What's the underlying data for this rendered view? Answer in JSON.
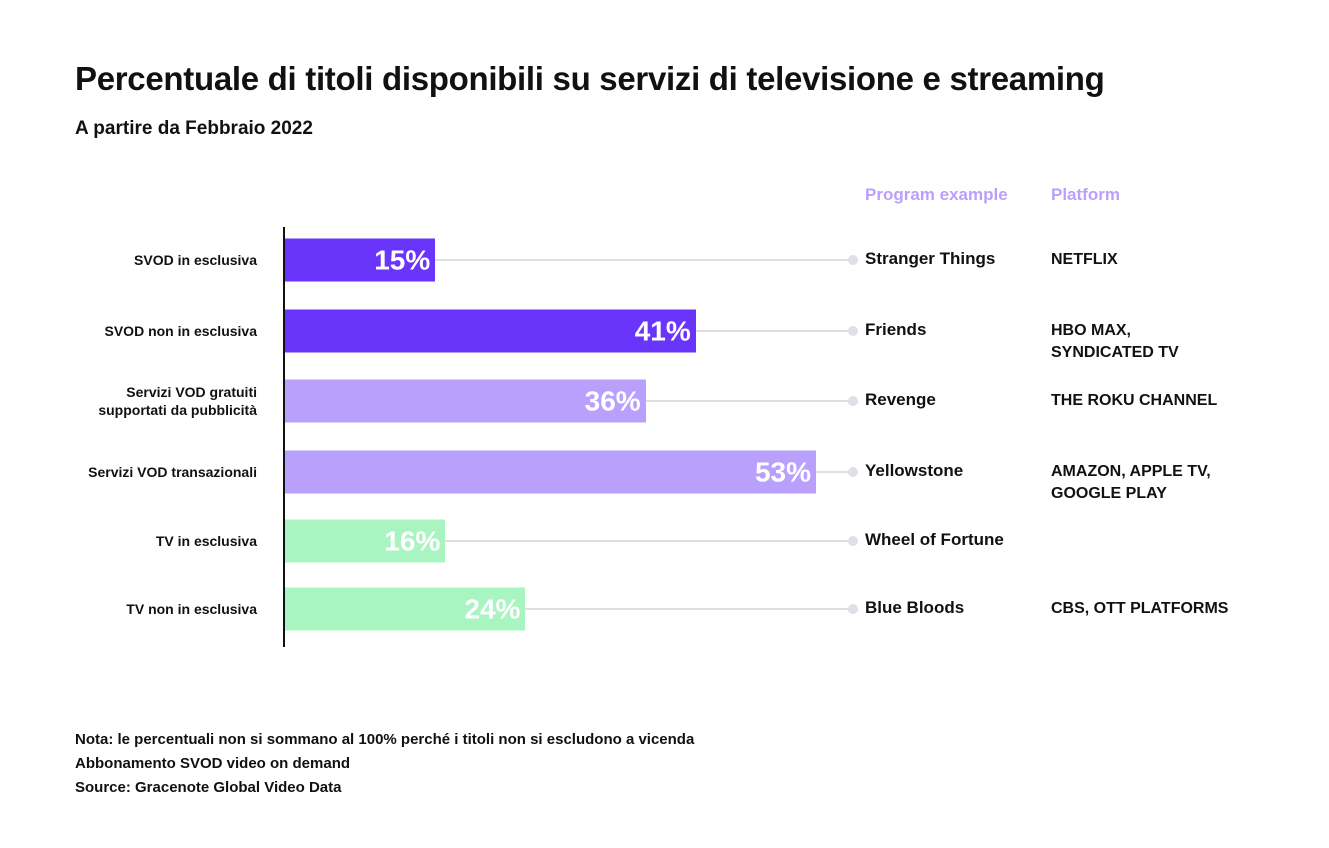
{
  "chart_data": {
    "type": "bar",
    "orientation": "horizontal",
    "title": "Percentuale di titoli disponibili su servizi di televisione e streaming",
    "subtitle": "A partire da Febbraio 2022",
    "categories": [
      "SVOD in esclusiva",
      "SVOD non in esclusiva",
      "Servizi VOD gratuiti supportati da pubblicità",
      "Servizi VOD transazionali",
      "TV in esclusiva",
      "TV non in esclusiva"
    ],
    "values": [
      15,
      41,
      36,
      53,
      16,
      24
    ],
    "value_labels": [
      "15%",
      "41%",
      "36%",
      "53%",
      "16%",
      "24%"
    ],
    "colors": [
      "#6a35fa",
      "#6a35fa",
      "#b9a0fd",
      "#b9a0fd",
      "#a8f5c2",
      "#a8f5c2"
    ],
    "xlim": [
      0,
      53
    ],
    "grid": false,
    "column_headers": {
      "program": "Program example",
      "platform": "Platform"
    },
    "program_examples": [
      "Stranger Things",
      "Friends",
      "Revenge",
      "Yellowstone",
      "Wheel of Fortune",
      "Blue Bloods"
    ],
    "platforms": [
      "NETFLIX",
      "HBO MAX,\nSYNDICATED TV",
      "THE ROKU CHANNEL",
      "AMAZON, APPLE TV,\nGOOGLE PLAY",
      "",
      "CBS, OTT PLATFORMS"
    ]
  },
  "notes": [
    "Nota: le percentuali non si sommano al 100% perché i titoli non si escludono a vicenda",
    "Abbonamento SVOD video on demand",
    "Source: Gracenote Global Video Data"
  ],
  "accent_colors": {
    "header": "#b9a0fd",
    "connector": "#dde0e6"
  }
}
